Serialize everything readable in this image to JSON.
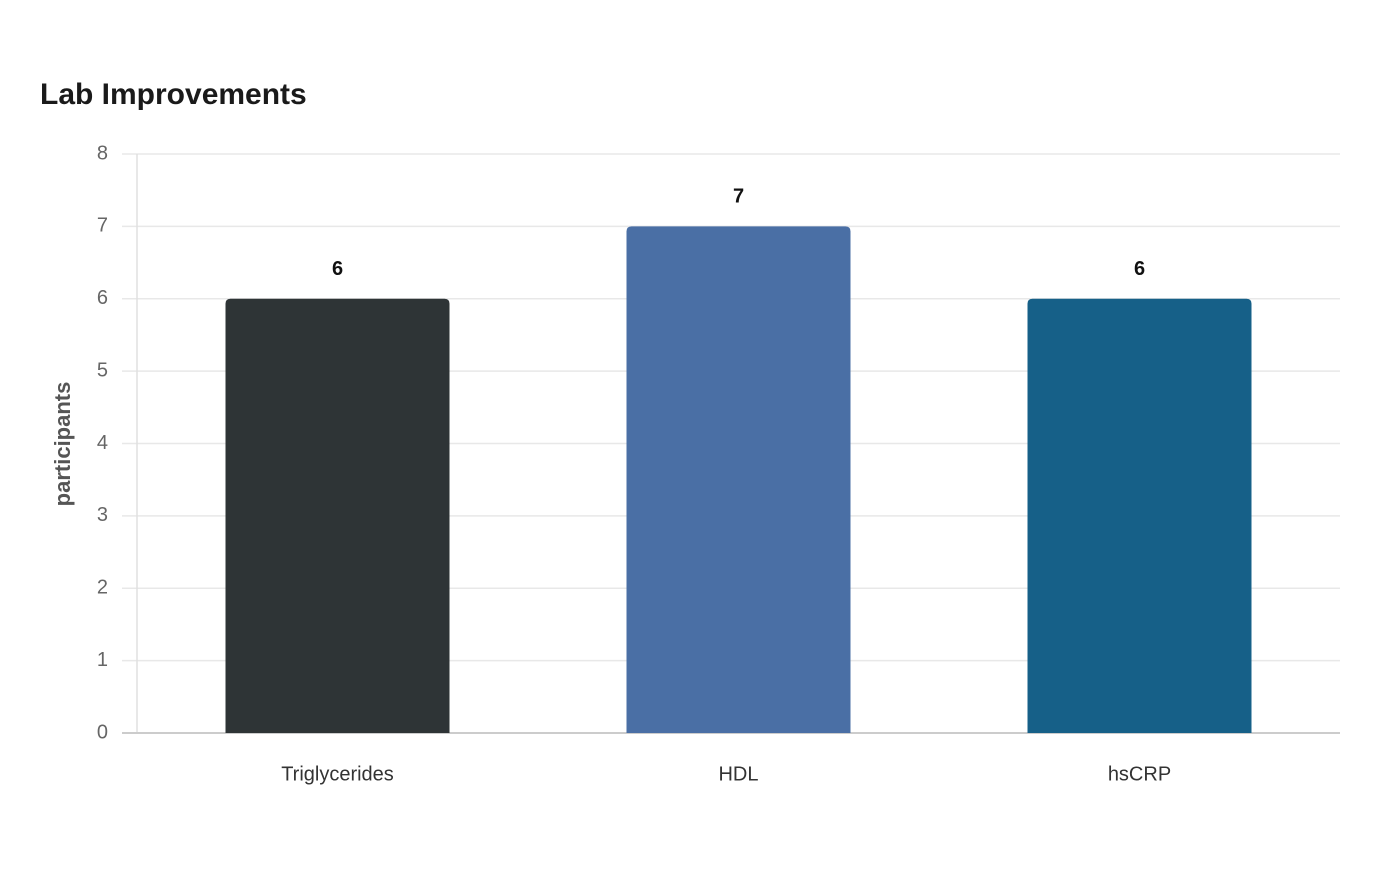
{
  "chart_data": {
    "type": "bar",
    "title": "Lab Improvements",
    "y_label": "participants",
    "categories": [
      "Triglycerides",
      "HDL",
      "hsCRP"
    ],
    "values": [
      6,
      7,
      6
    ],
    "colors": [
      "#2e3436",
      "#4a6fa5",
      "#166088"
    ],
    "ylim": [
      0,
      8
    ],
    "yticks": [
      0,
      1,
      2,
      3,
      4,
      5,
      6,
      7,
      8
    ],
    "grid": true
  }
}
